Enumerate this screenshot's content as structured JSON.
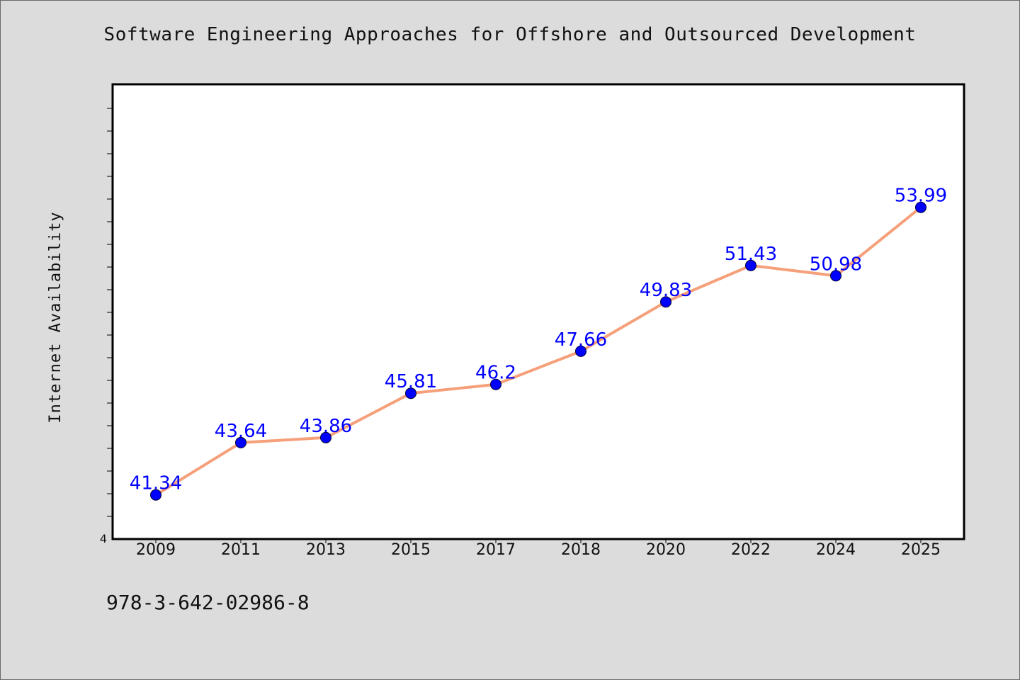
{
  "page": {
    "title": "Software Engineering Approaches for Offshore and Outsourced Development",
    "footer": "978-3-642-02986-8"
  },
  "chart_data": {
    "type": "line",
    "title": "Software Engineering Approaches for Offshore and Outsourced Development",
    "xlabel": "",
    "ylabel": "Internet Availability",
    "categories": [
      "2009",
      "2011",
      "2013",
      "2015",
      "2017",
      "2018",
      "2020",
      "2022",
      "2024",
      "2025"
    ],
    "series": [
      {
        "values": [
          41.34,
          43.64,
          43.86,
          45.81,
          46.2,
          47.66,
          49.83,
          51.43,
          50.98,
          53.99
        ]
      }
    ],
    "data_labels": [
      "41.34",
      "43.64",
      "43.86",
      "45.81",
      "46.2",
      "47.66",
      "49.83",
      "51.43",
      "50.98",
      "53.99"
    ],
    "ylim": [
      39.4,
      59.4
    ],
    "y_tick_labels": [
      "4"
    ],
    "grid": false,
    "legend": "none",
    "colors": {
      "line": "#f5a07a",
      "marker": "#0000ff",
      "label": "#0000ff",
      "plot_background": "#ffffff",
      "page_background": "#dcdcdc"
    }
  }
}
